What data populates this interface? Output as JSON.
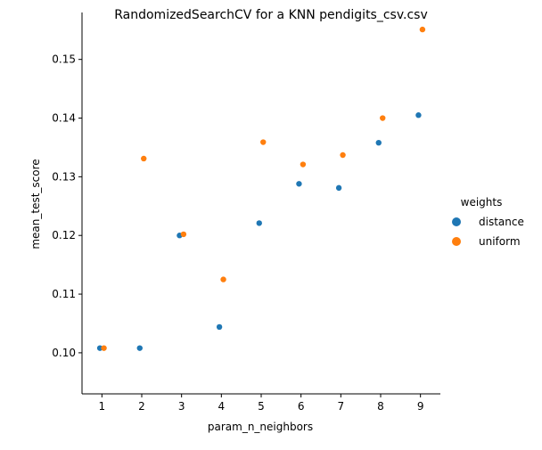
{
  "chart_data": {
    "type": "scatter",
    "title": "RandomizedSearchCV for a KNN pendigits_csv.csv",
    "xlabel": "param_n_neighbors",
    "ylabel": "mean_test_score",
    "xlim": [
      0.5,
      9.5
    ],
    "ylim": [
      0.093,
      0.158
    ],
    "x_ticks": [
      "1",
      "2",
      "3",
      "4",
      "5",
      "6",
      "7",
      "8",
      "9"
    ],
    "y_ticks": [
      "0.10",
      "0.11",
      "0.12",
      "0.13",
      "0.14",
      "0.15"
    ],
    "grid": false,
    "legend_position": "right",
    "legend_title": "weights",
    "series": [
      {
        "name": "distance",
        "color": "#1f77b4",
        "x": [
          1,
          2,
          3,
          4,
          5,
          6,
          7,
          8,
          9
        ],
        "y": [
          0.1008,
          0.1008,
          0.12,
          0.1044,
          0.1221,
          0.1288,
          0.1281,
          0.1358,
          0.1405
        ]
      },
      {
        "name": "uniform",
        "color": "#ff7f0e",
        "x": [
          1,
          2,
          3,
          4,
          5,
          6,
          7,
          8,
          9
        ],
        "y": [
          0.1008,
          0.1331,
          0.1202,
          0.1125,
          0.1359,
          0.1321,
          0.1337,
          0.14,
          0.1551
        ]
      }
    ]
  }
}
